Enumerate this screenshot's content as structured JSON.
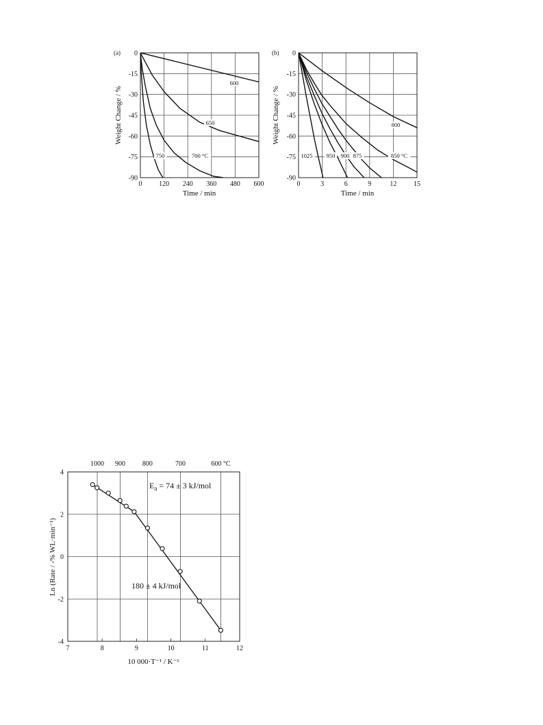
{
  "chart_data": [
    {
      "type": "line",
      "panel_label": "(a)",
      "xlabel": "Time / min",
      "ylabel": "Weight Change / %",
      "xlim": [
        0,
        600
      ],
      "ylim": [
        -90,
        0
      ],
      "xticks": [
        "0",
        "120",
        "240",
        "360",
        "480",
        "600"
      ],
      "yticks": [
        "0",
        "-15",
        "-30",
        "-45",
        "-60",
        "-75",
        "-90"
      ],
      "grid": true,
      "series": [
        {
          "name": "600",
          "x": [
            0,
            600
          ],
          "y": [
            0,
            -21
          ]
        },
        {
          "name": "650",
          "x": [
            0,
            60,
            120,
            200,
            300,
            400,
            500,
            600
          ],
          "y": [
            0,
            -16,
            -28,
            -40,
            -50,
            -56,
            -60,
            -64
          ]
        },
        {
          "name": "700 °C",
          "x": [
            0,
            10,
            25,
            50,
            80,
            120,
            170,
            230,
            300,
            370,
            420
          ],
          "y": [
            0,
            -12,
            -24,
            -40,
            -52,
            -63,
            -72,
            -79,
            -85,
            -89,
            -90
          ]
        },
        {
          "name": "750",
          "x": [
            0,
            5,
            15,
            30,
            50,
            70,
            90,
            105,
            115
          ],
          "y": [
            0,
            -15,
            -35,
            -52,
            -66,
            -76,
            -84,
            -88,
            -90
          ]
        }
      ]
    },
    {
      "type": "line",
      "panel_label": "(b)",
      "xlabel": "Time / min",
      "ylabel": "Weight Change / %",
      "xlim": [
        0,
        15
      ],
      "ylim": [
        -90,
        0
      ],
      "xticks": [
        "0",
        "3",
        "6",
        "9",
        "12",
        "15"
      ],
      "yticks": [
        "0",
        "-15",
        "-30",
        "-45",
        "-60",
        "-75",
        "-90"
      ],
      "grid": true,
      "series": [
        {
          "name": "800",
          "x": [
            0,
            3,
            6,
            9,
            12,
            15
          ],
          "y": [
            0,
            -13,
            -25,
            -36,
            -46,
            -54
          ]
        },
        {
          "name": "850 °C",
          "x": [
            0,
            1,
            2,
            3,
            4,
            6,
            8,
            10,
            12,
            14,
            15
          ],
          "y": [
            0,
            -12,
            -22,
            -31,
            -38,
            -51,
            -61,
            -70,
            -77,
            -83,
            -86
          ]
        },
        {
          "name": "875",
          "x": [
            0,
            1,
            2,
            3,
            4,
            5,
            6,
            7,
            8,
            9,
            10.5
          ],
          "y": [
            0,
            -14,
            -26,
            -37,
            -46,
            -55,
            -63,
            -70,
            -77,
            -83,
            -90
          ]
        },
        {
          "name": "900",
          "x": [
            0,
            1,
            2,
            3,
            4,
            5,
            6,
            7,
            8.3
          ],
          "y": [
            0,
            -17,
            -31,
            -44,
            -55,
            -65,
            -74,
            -82,
            -90
          ]
        },
        {
          "name": "950",
          "x": [
            0,
            1,
            2,
            3,
            4,
            5,
            6.2
          ],
          "y": [
            0,
            -20,
            -37,
            -52,
            -65,
            -76,
            -90
          ]
        },
        {
          "name": "1025",
          "x": [
            0,
            0.5,
            1,
            1.5,
            2,
            2.5,
            3.1
          ],
          "y": [
            0,
            -16,
            -32,
            -47,
            -62,
            -75,
            -90
          ]
        }
      ]
    },
    {
      "type": "scatter",
      "xlabel": "10 000·T⁻¹ / K⁻¹",
      "ylabel": "Ln (Rate / -% WL·min⁻¹)",
      "xlim": [
        7,
        12
      ],
      "ylim": [
        -4,
        4
      ],
      "xticks": [
        "7",
        "8",
        "9",
        "10",
        "11",
        "12"
      ],
      "yticks": [
        "4",
        "2",
        "0",
        "-2",
        "-4"
      ],
      "top_axis_ticks": [
        {
          "label": "1000",
          "x": 7.857
        },
        {
          "label": "900",
          "x": 8.525
        },
        {
          "label": "800",
          "x": 9.318
        },
        {
          "label": "700",
          "x": 10.276
        },
        {
          "label": "600 °C",
          "x": 11.453
        }
      ],
      "grid": true,
      "points": {
        "x": [
          7.72,
          7.85,
          8.18,
          8.52,
          8.7,
          8.93,
          9.32,
          9.75,
          10.27,
          10.83,
          11.45
        ],
        "y": [
          3.4,
          3.25,
          3.0,
          2.65,
          2.38,
          2.12,
          1.35,
          0.38,
          -0.7,
          -2.1,
          -3.48
        ]
      },
      "fit_lines": [
        {
          "x": [
            7.72,
            8.93
          ],
          "y": [
            3.4,
            2.12
          ]
        },
        {
          "x": [
            8.93,
            11.45
          ],
          "y": [
            2.12,
            -3.48
          ]
        }
      ],
      "annotations": {
        "ea_prefix": "E",
        "ea_sub": "a",
        "ea_value": " = 74 ± 3 kJ/mol",
        "ea_high": "180 ± 4 kJ/mol"
      }
    }
  ]
}
